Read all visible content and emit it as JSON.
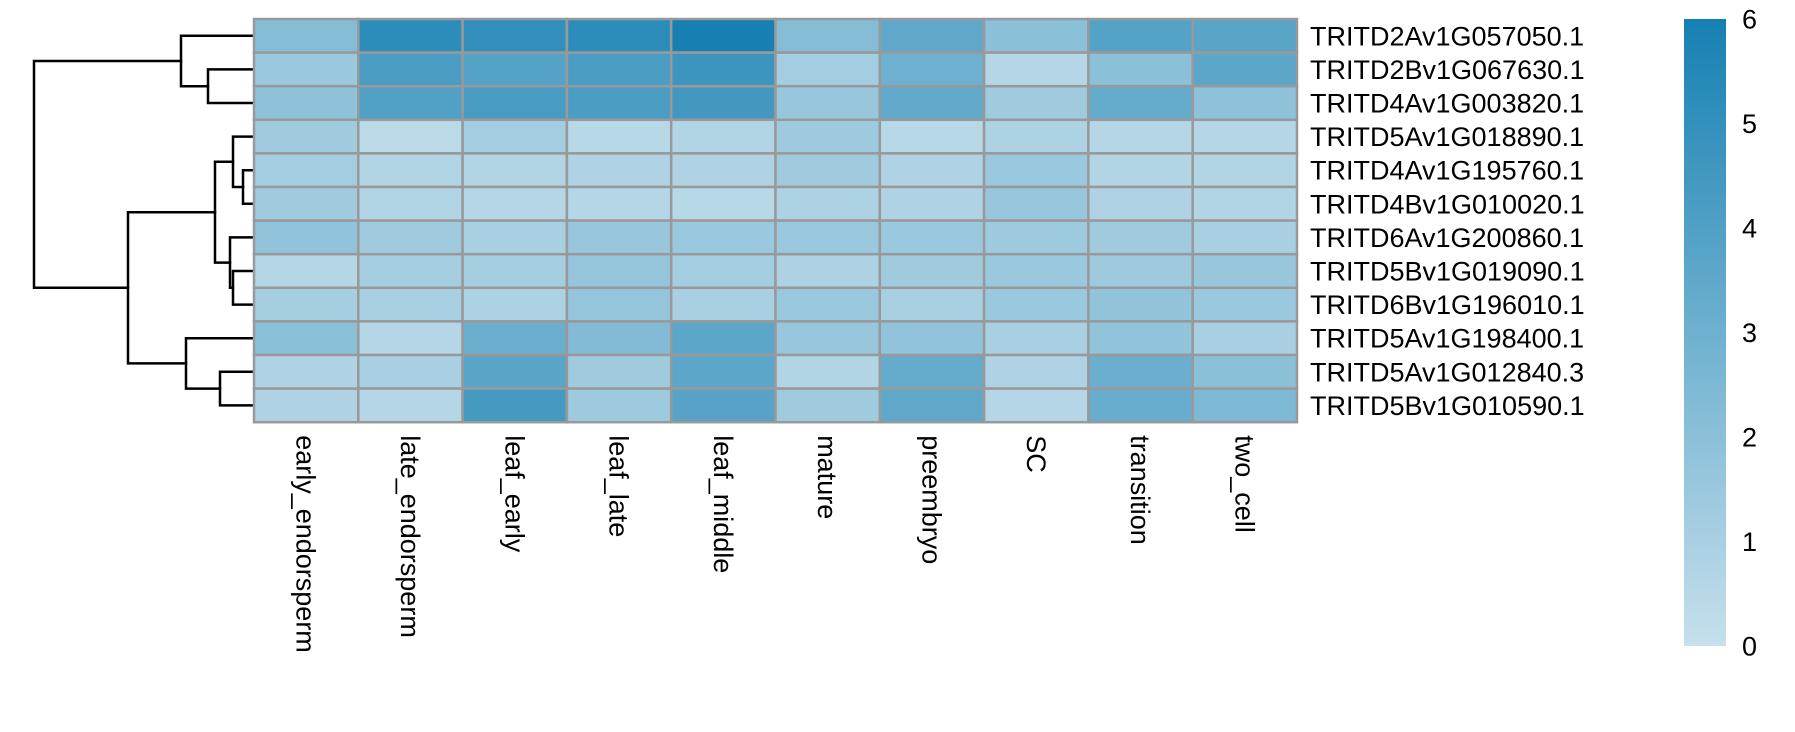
{
  "chart_data": {
    "type": "heatmap",
    "title": "",
    "xlabel": "",
    "ylabel": "",
    "columns": [
      "early_endorsperm",
      "late_endorsperm",
      "leaf_early",
      "leaf_late",
      "leaf_middle",
      "mature",
      "preembryo",
      "SC",
      "transition",
      "two_cell"
    ],
    "rows": [
      "TRITD2Av1G057050.1",
      "TRITD2Bv1G067630.1",
      "TRITD4Av1G003820.1",
      "TRITD5Av1G018890.1",
      "TRITD4Av1G195760.1",
      "TRITD4Bv1G010020.1",
      "TRITD6Av1G200860.1",
      "TRITD5Bv1G019090.1",
      "TRITD6Bv1G196010.1",
      "TRITD5Av1G198400.1",
      "TRITD5Av1G012840.3",
      "TRITD5Bv1G010590.1"
    ],
    "values": [
      [
        2.2,
        5.2,
        5.0,
        5.2,
        6.0,
        2.2,
        3.5,
        2.0,
        3.9,
        3.7
      ],
      [
        1.5,
        4.2,
        3.9,
        4.2,
        4.7,
        1.2,
        3.0,
        0.6,
        2.0,
        3.6
      ],
      [
        1.9,
        4.0,
        4.3,
        4.2,
        4.5,
        1.6,
        3.4,
        1.3,
        3.3,
        1.9
      ],
      [
        1.3,
        0.4,
        1.2,
        0.5,
        0.7,
        1.4,
        0.5,
        0.9,
        0.6,
        0.6
      ],
      [
        1.2,
        0.7,
        0.7,
        0.8,
        0.8,
        1.3,
        0.8,
        1.5,
        0.7,
        0.7
      ],
      [
        1.3,
        0.7,
        0.6,
        0.6,
        0.5,
        0.9,
        0.8,
        1.6,
        0.8,
        0.7
      ],
      [
        1.8,
        1.3,
        1.0,
        1.6,
        1.5,
        1.5,
        1.5,
        1.4,
        1.3,
        1.0
      ],
      [
        0.6,
        1.1,
        1.1,
        1.7,
        1.2,
        0.9,
        1.3,
        1.5,
        1.4,
        1.6
      ],
      [
        1.1,
        1.0,
        0.9,
        1.7,
        1.0,
        1.5,
        1.0,
        1.5,
        1.8,
        1.5
      ],
      [
        2.0,
        0.6,
        3.1,
        2.3,
        3.6,
        1.6,
        1.8,
        1.0,
        1.8,
        1.0
      ],
      [
        0.8,
        1.0,
        3.7,
        1.3,
        3.6,
        0.7,
        3.3,
        0.8,
        3.1,
        2.0
      ],
      [
        0.8,
        0.6,
        4.4,
        1.4,
        3.8,
        1.3,
        3.5,
        0.6,
        3.2,
        2.5
      ]
    ],
    "color_scale": {
      "min": 0,
      "max": 6,
      "low_color": "#c6e0ec",
      "high_color": "#1680b2",
      "ticks": [
        0,
        1,
        2,
        3,
        4,
        5,
        6
      ]
    },
    "grid": true,
    "legend_position": "right",
    "row_dendrogram": true,
    "cell_border_color": "#999999"
  }
}
